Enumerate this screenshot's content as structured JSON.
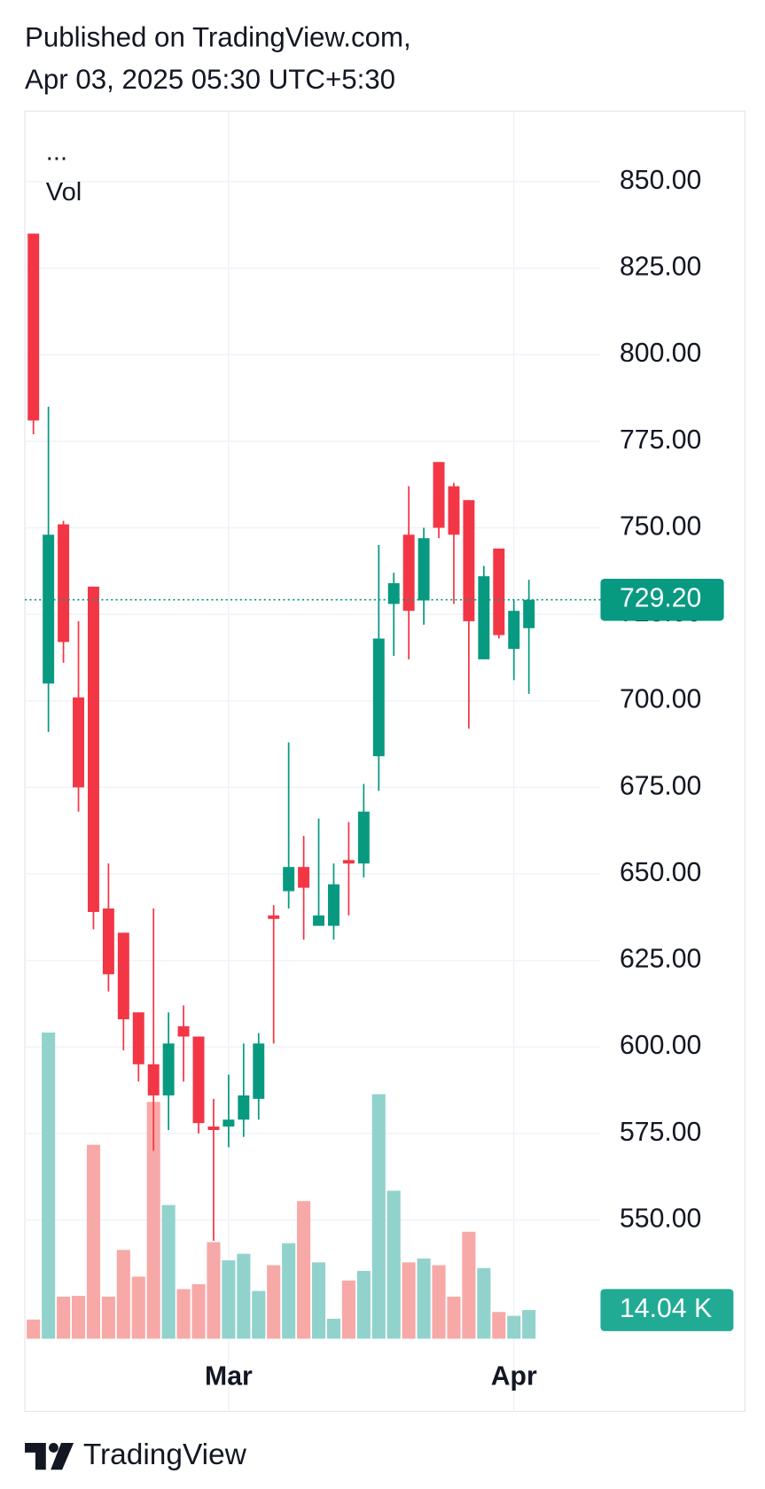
{
  "published": "Published on TradingView.com,",
  "timestamp": "Apr 03, 2025 05:30 UTC+5:30",
  "brand": "TradingView",
  "chart_data": {
    "type": "candlestick",
    "symbol_label": "...",
    "up_color": "#089981",
    "down_color": "#f23645",
    "open": [
      835,
      705,
      751,
      701,
      733,
      640,
      633,
      610,
      595,
      586,
      606,
      603,
      577,
      577,
      579,
      585,
      638,
      645,
      652,
      635,
      635,
      654,
      653,
      684,
      728,
      748,
      729,
      769,
      762,
      758,
      712,
      744,
      715,
      721
    ],
    "high": [
      835,
      785,
      752,
      723,
      733,
      653,
      633,
      610,
      640,
      610,
      612,
      603,
      585,
      592,
      601,
      604,
      641,
      688,
      661,
      666,
      653,
      665,
      676,
      745,
      737,
      762,
      750,
      769,
      763,
      758,
      739,
      744,
      729,
      735
    ],
    "low": [
      777,
      691,
      711,
      668,
      634,
      616,
      599,
      590,
      570,
      576,
      590,
      575,
      544,
      571,
      574,
      579,
      601,
      640,
      631,
      635,
      631,
      638,
      649,
      674,
      713,
      712,
      722,
      747,
      728,
      692,
      712,
      718,
      706,
      702
    ],
    "close": [
      781,
      748,
      717,
      675,
      639,
      621,
      608,
      595,
      586,
      601,
      603,
      578,
      576,
      579,
      586,
      601,
      637,
      652,
      646,
      638,
      647,
      653,
      668,
      718,
      734,
      726,
      747,
      750,
      748,
      723,
      736,
      719,
      726,
      729.2
    ],
    "xlim": [
      -0.57,
      37.77
    ],
    "xticks": [
      {
        "value": 13,
        "label": "Mar"
      },
      {
        "value": 32,
        "label": "Apr"
      }
    ],
    "ylim": [
      515.7,
      870.4
    ],
    "yticks": [
      {
        "value": 550,
        "label": "550.00"
      },
      {
        "value": 575,
        "label": "575.00"
      },
      {
        "value": 600,
        "label": "600.00"
      },
      {
        "value": 625,
        "label": "625.00"
      },
      {
        "value": 650,
        "label": "650.00"
      },
      {
        "value": 675,
        "label": "675.00"
      },
      {
        "value": 700,
        "label": "700.00"
      },
      {
        "value": 725,
        "label": "725.00"
      },
      {
        "value": 750,
        "label": "750.00"
      },
      {
        "value": 775,
        "label": "775.00"
      },
      {
        "value": 800,
        "label": "800.00"
      },
      {
        "value": 825,
        "label": "825.00"
      },
      {
        "value": 850,
        "label": "850.00"
      }
    ],
    "grid": true,
    "last_price": {
      "value": 729.2,
      "label": "729.20"
    },
    "volume": {
      "name": "Vol",
      "up_color": "#92d2cc",
      "down_color": "#f7a9a7",
      "ylim": [
        0,
        200
      ],
      "values": [
        9.4,
        150,
        20.6,
        21,
        95,
        20.6,
        43.5,
        30.4,
        116,
        65.5,
        24.3,
        26.7,
        47.3,
        38.4,
        41.6,
        23.4,
        36,
        46.8,
        67.4,
        37.4,
        9.8,
        28.5,
        33.2,
        119.8,
        72.5,
        37.4,
        39.3,
        36,
        20.6,
        52.4,
        34.6,
        13.1,
        11.2,
        14.04
      ],
      "last": {
        "value": 14.04,
        "label": "14.04 K"
      }
    }
  }
}
